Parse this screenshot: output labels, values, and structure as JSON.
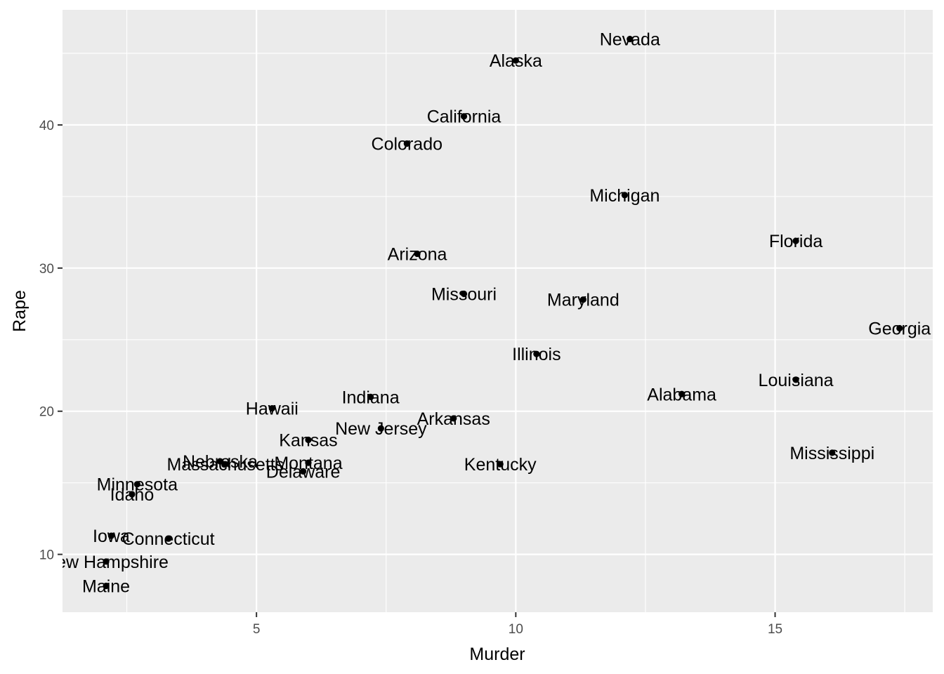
{
  "chart_data": {
    "type": "scatter",
    "title": "",
    "xlabel": "Murder",
    "ylabel": "Rape",
    "xlim": [
      1.26,
      18.04
    ],
    "ylim": [
      5.96,
      48.04
    ],
    "x_ticks": [
      5,
      10,
      15
    ],
    "y_ticks": [
      10,
      20,
      30,
      40
    ],
    "grid": true,
    "legend": "none",
    "colors": {
      "panel": "#ebebeb",
      "grid": "#ffffff",
      "point": "#000000",
      "tick_text": "#4d4d4d"
    },
    "points": [
      {
        "label": "Alabama",
        "x": 13.2,
        "y": 21.2
      },
      {
        "label": "Alaska",
        "x": 10.0,
        "y": 44.5
      },
      {
        "label": "Arizona",
        "x": 8.1,
        "y": 31.0
      },
      {
        "label": "Arkansas",
        "x": 8.8,
        "y": 19.5
      },
      {
        "label": "California",
        "x": 9.0,
        "y": 40.6
      },
      {
        "label": "Colorado",
        "x": 7.9,
        "y": 38.7
      },
      {
        "label": "Connecticut",
        "x": 3.3,
        "y": 11.1
      },
      {
        "label": "Delaware",
        "x": 5.9,
        "y": 15.8
      },
      {
        "label": "Florida",
        "x": 15.4,
        "y": 31.9
      },
      {
        "label": "Georgia",
        "x": 17.4,
        "y": 25.8
      },
      {
        "label": "Hawaii",
        "x": 5.3,
        "y": 20.2
      },
      {
        "label": "Idaho",
        "x": 2.6,
        "y": 14.2
      },
      {
        "label": "Illinois",
        "x": 10.4,
        "y": 24.0
      },
      {
        "label": "Indiana",
        "x": 7.2,
        "y": 21.0
      },
      {
        "label": "Iowa",
        "x": 2.2,
        "y": 11.3
      },
      {
        "label": "Kansas",
        "x": 6.0,
        "y": 18.0
      },
      {
        "label": "Kentucky",
        "x": 9.7,
        "y": 16.3
      },
      {
        "label": "Louisiana",
        "x": 15.4,
        "y": 22.2
      },
      {
        "label": "Maine",
        "x": 2.1,
        "y": 7.8
      },
      {
        "label": "Maryland",
        "x": 11.3,
        "y": 27.8
      },
      {
        "label": "Massachusetts",
        "x": 4.4,
        "y": 16.3
      },
      {
        "label": "Michigan",
        "x": 12.1,
        "y": 35.1
      },
      {
        "label": "Minnesota",
        "x": 2.7,
        "y": 14.9
      },
      {
        "label": "Mississippi",
        "x": 16.1,
        "y": 17.1
      },
      {
        "label": "Missouri",
        "x": 9.0,
        "y": 28.2
      },
      {
        "label": "Montana",
        "x": 6.0,
        "y": 16.4
      },
      {
        "label": "Nebraska",
        "x": 4.3,
        "y": 16.5
      },
      {
        "label": "Nevada",
        "x": 12.2,
        "y": 46.0
      },
      {
        "label": "New Hampshire",
        "x": 2.1,
        "y": 9.5
      },
      {
        "label": "New Jersey",
        "x": 7.4,
        "y": 18.8
      }
    ]
  }
}
